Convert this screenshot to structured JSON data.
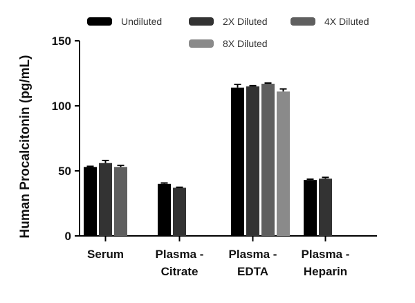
{
  "chart_data": {
    "type": "bar",
    "title": "",
    "xlabel": "",
    "ylabel": "Human  Procalcitonin (pg/mL)",
    "ylim": [
      0,
      150
    ],
    "yticks": [
      0,
      50,
      100,
      150
    ],
    "ytick_labels": [
      "0",
      "50",
      "100",
      "150"
    ],
    "grid": false,
    "legend_position": "top",
    "categories": [
      {
        "line1": "Serum",
        "line2": ""
      },
      {
        "line1": "Plasma -",
        "line2": "Citrate"
      },
      {
        "line1": "Plasma -",
        "line2": "EDTA"
      },
      {
        "line1": "Plasma -",
        "line2": "Heparin"
      }
    ],
    "series": [
      {
        "name": "Undiluted",
        "color": "#000000",
        "values": [
          53,
          40,
          114,
          43
        ],
        "errors": [
          0.5,
          0.7,
          2.5,
          0.6
        ]
      },
      {
        "name": "2X Diluted",
        "color": "#333333",
        "values": [
          56,
          37,
          115,
          44
        ],
        "errors": [
          2.0,
          0.4,
          0.5,
          1.0
        ]
      },
      {
        "name": "4X Diluted",
        "color": "#5f5f5f",
        "values": [
          53,
          null,
          117,
          null
        ],
        "errors": [
          1.2,
          null,
          0.5,
          null
        ]
      },
      {
        "name": "8X Diluted",
        "color": "#8a8a8a",
        "values": [
          null,
          null,
          111,
          null
        ],
        "errors": [
          null,
          null,
          2.0,
          null
        ]
      }
    ]
  }
}
